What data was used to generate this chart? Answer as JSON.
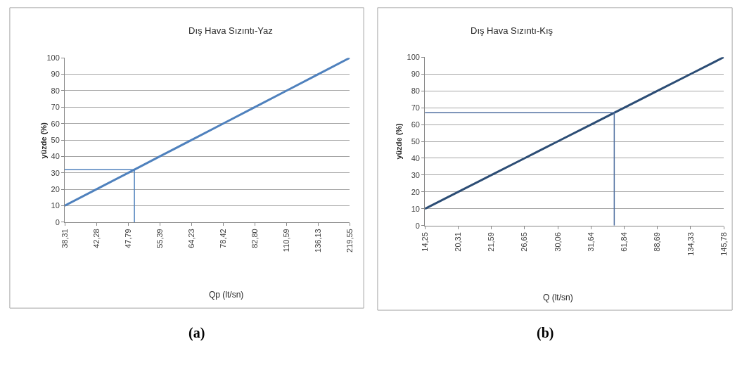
{
  "chart_data": [
    {
      "type": "line",
      "title": "Dış Hava Sızıntı-Yaz",
      "xlabel": "Qp (lt/sn)",
      "ylabel": "yüzde (%)",
      "categories": [
        "38,31",
        "42,28",
        "47,79",
        "55,39",
        "64,23",
        "78,42",
        "82,80",
        "110,59",
        "136,13",
        "219,55"
      ],
      "values": [
        10,
        20,
        30,
        40,
        50,
        60,
        70,
        80,
        90,
        100
      ],
      "color": "#4f81bd",
      "ylim": [
        0,
        100
      ],
      "yticks": [
        0,
        10,
        20,
        30,
        40,
        50,
        60,
        70,
        80,
        90,
        100
      ],
      "grid": "y",
      "ref_lines": [
        {
          "axis": "y",
          "value": 32,
          "color": "#4f81bd"
        }
      ],
      "annotations": [
        "(a)"
      ]
    },
    {
      "type": "line",
      "title": "Dış Hava Sızıntı-Kış",
      "xlabel": "Q (lt/sn)",
      "ylabel": "yüzde (%)",
      "categories": [
        "14,25",
        "20,31",
        "21,59",
        "26,65",
        "30,06",
        "31,64",
        "61,84",
        "88,69",
        "134,33",
        "145,78"
      ],
      "values": [
        10,
        20,
        30,
        40,
        50,
        60,
        70,
        80,
        90,
        100
      ],
      "color": "#2c4d75",
      "ylim": [
        0,
        100
      ],
      "yticks": [
        0,
        10,
        20,
        30,
        40,
        50,
        60,
        70,
        80,
        90,
        100
      ],
      "grid": "y",
      "ref_lines": [
        {
          "axis": "y",
          "value": 67,
          "color": "#4f6fa0"
        }
      ],
      "annotations": [
        "(b)"
      ]
    }
  ]
}
